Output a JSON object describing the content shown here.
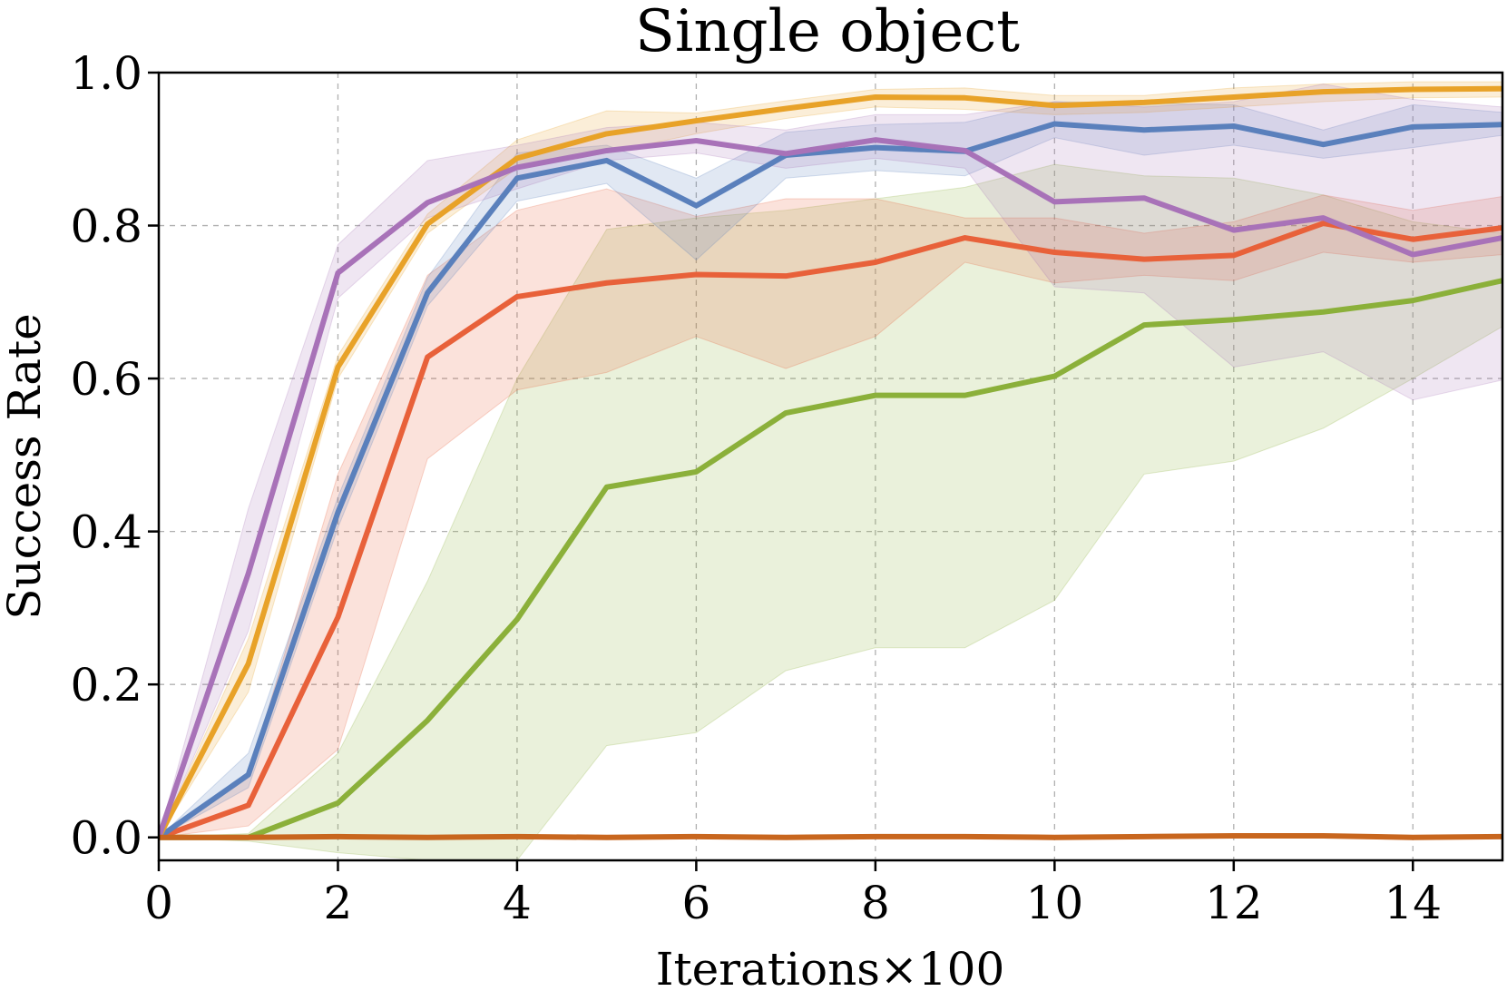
{
  "chart_data": {
    "type": "line",
    "title": "Single object",
    "xlabel": "Iterations×100",
    "ylabel": "Success Rate",
    "xlim": [
      0,
      15
    ],
    "ylim": [
      -0.03,
      1.0
    ],
    "xticks": [
      0,
      2,
      4,
      6,
      8,
      10,
      12,
      14
    ],
    "xtick_labels": [
      "0",
      "2",
      "4",
      "6",
      "8",
      "10",
      "12",
      "14"
    ],
    "yticks": [
      0.0,
      0.2,
      0.4,
      0.6,
      0.8,
      1.0
    ],
    "ytick_labels": [
      "0.0",
      "0.2",
      "0.4",
      "0.6",
      "0.8",
      "1.0"
    ],
    "grid": true,
    "x": [
      0,
      1,
      2,
      3,
      4,
      5,
      6,
      7,
      8,
      9,
      10,
      11,
      12,
      13,
      14,
      15
    ],
    "series": [
      {
        "name": "green",
        "color": "#8bb03a",
        "values": [
          0.0,
          0.0,
          0.045,
          0.153,
          0.285,
          0.458,
          0.478,
          0.555,
          0.578,
          0.578,
          0.603,
          0.67,
          0.677,
          0.687,
          0.702,
          0.728
        ],
        "lower": [
          0.0,
          -0.005,
          -0.02,
          -0.03,
          -0.03,
          0.12,
          0.137,
          0.218,
          0.248,
          0.248,
          0.31,
          0.475,
          0.492,
          0.535,
          0.6,
          0.668
        ],
        "upper": [
          0.0,
          0.005,
          0.11,
          0.335,
          0.6,
          0.795,
          0.81,
          0.82,
          0.835,
          0.85,
          0.88,
          0.865,
          0.862,
          0.84,
          0.805,
          0.79
        ]
      },
      {
        "name": "red",
        "color": "#e8613a",
        "values": [
          0.0,
          0.042,
          0.288,
          0.628,
          0.707,
          0.725,
          0.736,
          0.734,
          0.752,
          0.784,
          0.765,
          0.756,
          0.761,
          0.803,
          0.782,
          0.797
        ],
        "lower": [
          0.0,
          0.015,
          0.115,
          0.495,
          0.585,
          0.608,
          0.655,
          0.613,
          0.655,
          0.752,
          0.725,
          0.735,
          0.728,
          0.765,
          0.752,
          0.762
        ],
        "upper": [
          0.0,
          0.08,
          0.475,
          0.735,
          0.82,
          0.848,
          0.812,
          0.835,
          0.835,
          0.81,
          0.81,
          0.79,
          0.805,
          0.84,
          0.82,
          0.838
        ]
      },
      {
        "name": "blue",
        "color": "#5a80bc",
        "values": [
          0.0,
          0.082,
          0.425,
          0.712,
          0.862,
          0.885,
          0.826,
          0.892,
          0.902,
          0.897,
          0.933,
          0.925,
          0.93,
          0.906,
          0.929,
          0.932
        ],
        "lower": [
          0.0,
          0.065,
          0.405,
          0.695,
          0.832,
          0.855,
          0.755,
          0.862,
          0.872,
          0.865,
          0.915,
          0.892,
          0.905,
          0.888,
          0.902,
          0.918
        ],
        "upper": [
          0.0,
          0.11,
          0.445,
          0.732,
          0.895,
          0.905,
          0.862,
          0.922,
          0.932,
          0.935,
          0.962,
          0.96,
          0.958,
          0.925,
          0.958,
          0.948
        ]
      },
      {
        "name": "orange",
        "color": "#e8a228",
        "values": [
          0.0,
          0.227,
          0.615,
          0.802,
          0.888,
          0.92,
          0.937,
          0.953,
          0.968,
          0.967,
          0.957,
          0.961,
          0.968,
          0.975,
          0.978,
          0.979
        ],
        "lower": [
          0.0,
          0.19,
          0.6,
          0.79,
          0.875,
          0.895,
          0.92,
          0.94,
          0.955,
          0.952,
          0.945,
          0.948,
          0.955,
          0.962,
          0.967,
          0.968
        ],
        "upper": [
          0.0,
          0.26,
          0.63,
          0.815,
          0.912,
          0.95,
          0.947,
          0.963,
          0.978,
          0.98,
          0.97,
          0.97,
          0.98,
          0.985,
          0.988,
          0.988
        ]
      },
      {
        "name": "purple",
        "color": "#a872b8",
        "values": [
          0.0,
          0.345,
          0.738,
          0.83,
          0.876,
          0.898,
          0.911,
          0.894,
          0.912,
          0.898,
          0.831,
          0.836,
          0.794,
          0.81,
          0.762,
          0.784
        ],
        "lower": [
          0.0,
          0.27,
          0.705,
          0.81,
          0.848,
          0.885,
          0.895,
          0.875,
          0.888,
          0.875,
          0.72,
          0.712,
          0.615,
          0.635,
          0.572,
          0.598
        ],
        "upper": [
          0.0,
          0.43,
          0.775,
          0.885,
          0.905,
          0.928,
          0.935,
          0.925,
          0.945,
          0.945,
          0.962,
          0.955,
          0.962,
          0.985,
          0.965,
          0.955
        ]
      },
      {
        "name": "brown",
        "color": "#c8661e",
        "values": [
          0.0,
          0.0,
          0.001,
          0.0,
          0.001,
          0.0,
          0.001,
          0.0,
          0.001,
          0.001,
          0.0,
          0.001,
          0.002,
          0.002,
          0.0,
          0.001
        ],
        "lower": [
          0.0,
          0.0,
          0.0,
          0.0,
          0.0,
          0.0,
          0.0,
          0.0,
          0.0,
          0.0,
          0.0,
          0.0,
          0.0,
          0.0,
          0.0,
          0.0
        ],
        "upper": [
          0.0,
          0.002,
          0.003,
          0.002,
          0.003,
          0.002,
          0.003,
          0.002,
          0.003,
          0.003,
          0.002,
          0.003,
          0.004,
          0.004,
          0.002,
          0.003
        ]
      }
    ]
  }
}
